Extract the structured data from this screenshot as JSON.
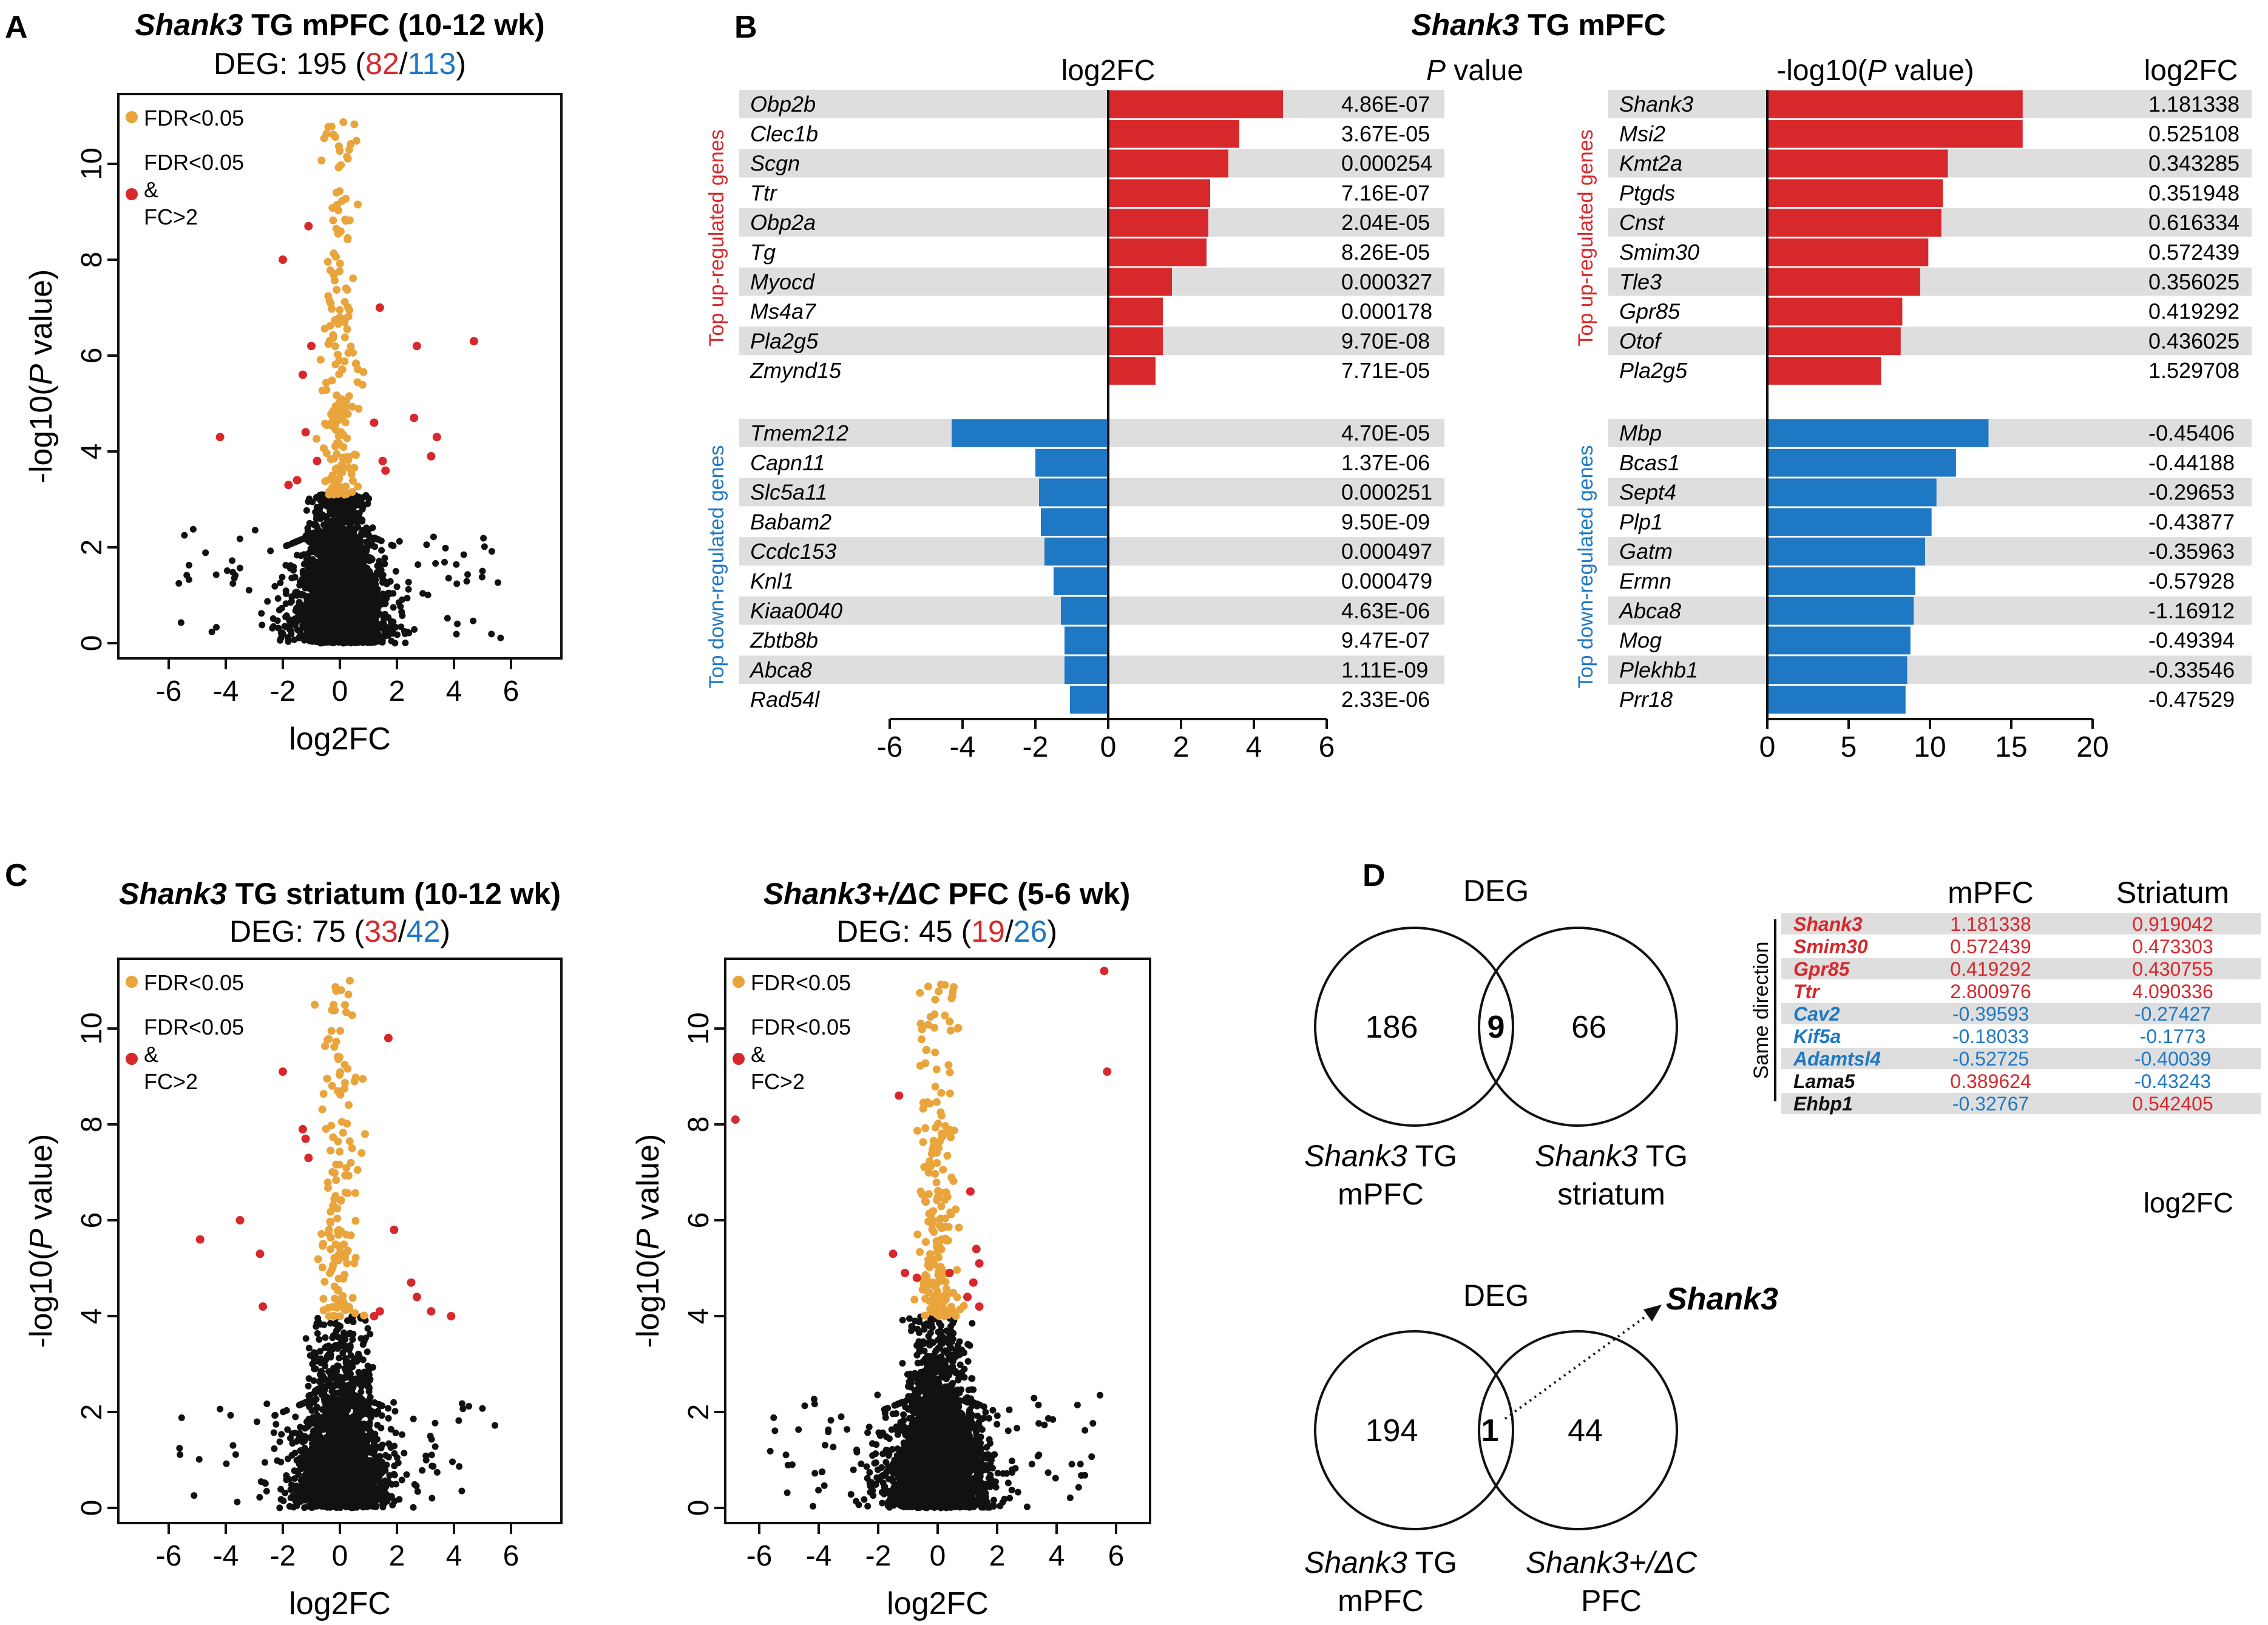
{
  "colors": {
    "red": "#d7282c",
    "blue": "#1f78c4",
    "orange": "#e9a43c",
    "black": "#111111",
    "band": "#dedede"
  },
  "panels": {
    "A": {
      "letter": "A",
      "title_gene": "Shank3",
      "title_rest": " TG mPFC (10-12 wk)",
      "deg_prefix": "DEG: 195 (",
      "up": "82",
      "slash": "/",
      "down": "113",
      "deg_suffix": ")"
    },
    "B": {
      "letter": "B",
      "title_gene": "Shank3",
      "title_rest": " TG mPFC"
    },
    "C": {
      "letter": "C",
      "left": {
        "title_gene": "Shank3",
        "title_rest": " TG striatum (10-12 wk)",
        "deg_prefix": "DEG: 75 (",
        "up": "33",
        "slash": "/",
        "down": "42",
        "deg_suffix": ")"
      },
      "right": {
        "title_gene": "Shank3+/ΔC",
        "title_rest": " PFC (5-6 wk)",
        "deg_prefix": "DEG: 45 (",
        "up": "19",
        "slash": "/",
        "down": "26",
        "deg_suffix": ")"
      }
    },
    "D": {
      "letter": "D"
    }
  },
  "volcano": {
    "xlabel": "log2FC",
    "ylabel_pre": "-log10(",
    "ylabel_p": "P",
    "ylabel_post": " value)",
    "xticks": [
      "-6",
      "-4",
      "-2",
      "0",
      "2",
      "4",
      "6"
    ],
    "yticks": [
      "0",
      "2",
      "4",
      "6",
      "8",
      "10"
    ],
    "legend": {
      "fdr": "FDR<0.05",
      "fdr_fc_1": "FDR<0.05",
      "fdr_fc_2": "&",
      "fdr_fc_3": "FC>2"
    }
  },
  "chart_data": [
    {
      "type": "scatter",
      "panel": "A",
      "title": "Shank3 TG mPFC (10-12 wk)",
      "xlabel": "log2FC",
      "ylabel": "-log10(P value)",
      "xlim": [
        -8,
        8
      ],
      "ylim": [
        -0.3,
        11.5
      ],
      "red_points": [
        [
          -4.2,
          4.3
        ],
        [
          -2.0,
          8.0
        ],
        [
          -1.3,
          5.6
        ],
        [
          -1.2,
          4.4
        ],
        [
          -1.0,
          6.2
        ],
        [
          -0.8,
          3.8
        ],
        [
          -1.5,
          3.4
        ],
        [
          -1.8,
          3.3
        ],
        [
          -1.1,
          8.7
        ],
        [
          1.4,
          7.0
        ],
        [
          1.2,
          4.6
        ],
        [
          1.5,
          3.8
        ],
        [
          2.7,
          6.2
        ],
        [
          2.6,
          4.7
        ],
        [
          3.4,
          4.3
        ],
        [
          3.2,
          3.9
        ],
        [
          4.7,
          6.3
        ],
        [
          1.6,
          3.6
        ]
      ]
    },
    {
      "type": "scatter",
      "panel": "C-left",
      "title": "Shank3 TG striatum (10-12 wk)",
      "xlabel": "log2FC",
      "ylabel": "-log10(P value)",
      "xlim": [
        -8,
        8
      ],
      "ylim": [
        -0.3,
        11.5
      ],
      "red_points": [
        [
          -4.9,
          5.6
        ],
        [
          -3.5,
          6.0
        ],
        [
          -2.8,
          5.3
        ],
        [
          -2.7,
          4.2
        ],
        [
          -2.0,
          9.1
        ],
        [
          -1.3,
          7.9
        ],
        [
          -1.2,
          7.7
        ],
        [
          -1.1,
          7.3
        ],
        [
          1.7,
          9.8
        ],
        [
          1.9,
          5.8
        ],
        [
          2.5,
          4.7
        ],
        [
          2.7,
          4.4
        ],
        [
          3.2,
          4.1
        ],
        [
          1.4,
          4.1
        ],
        [
          1.2,
          4.0
        ],
        [
          3.9,
          4.0
        ]
      ]
    },
    {
      "type": "scatter",
      "panel": "C-right",
      "title": "Shank3+/ΔC PFC (5-6 wk)",
      "xlabel": "log2FC",
      "ylabel": "-log10(P value)",
      "xlim": [
        -8,
        8
      ],
      "ylim": [
        -0.3,
        11.5
      ],
      "red_points": [
        [
          -6.8,
          8.1
        ],
        [
          -1.3,
          8.6
        ],
        [
          -1.5,
          5.3
        ],
        [
          -1.1,
          4.9
        ],
        [
          -0.7,
          4.8
        ],
        [
          1.1,
          6.6
        ],
        [
          1.3,
          5.4
        ],
        [
          1.4,
          5.1
        ],
        [
          1.2,
          4.7
        ],
        [
          1.0,
          4.4
        ],
        [
          5.6,
          11.2
        ],
        [
          5.7,
          9.1
        ],
        [
          0.4,
          4.9
        ],
        [
          1.4,
          4.2
        ]
      ]
    },
    {
      "type": "bar",
      "panel": "B-left",
      "orientation": "horizontal",
      "xlabel": "log2FC",
      "value_header": "P value",
      "xlim": [
        -6,
        6
      ],
      "xticks": [
        -6,
        -4,
        -2,
        0,
        2,
        4,
        6
      ],
      "up_label": "Top up-regulated genes",
      "down_label": "Top down-regulated genes",
      "up": [
        {
          "gene": "Obp2b",
          "value": 4.8,
          "p": "4.86E-07"
        },
        {
          "gene": "Clec1b",
          "value": 3.6,
          "p": "3.67E-05"
        },
        {
          "gene": "Scgn",
          "value": 3.3,
          "p": "0.000254"
        },
        {
          "gene": "Ttr",
          "value": 2.8,
          "p": "7.16E-07"
        },
        {
          "gene": "Obp2a",
          "value": 2.75,
          "p": "2.04E-05"
        },
        {
          "gene": "Tg",
          "value": 2.7,
          "p": "8.26E-05"
        },
        {
          "gene": "Myocd",
          "value": 1.75,
          "p": "0.000327"
        },
        {
          "gene": "Ms4a7",
          "value": 1.5,
          "p": "0.000178"
        },
        {
          "gene": "Pla2g5",
          "value": 1.5,
          "p": "9.70E-08"
        },
        {
          "gene": "Zmynd15",
          "value": 1.3,
          "p": "7.71E-05"
        }
      ],
      "down": [
        {
          "gene": "Tmem212",
          "value": -4.3,
          "p": "4.70E-05"
        },
        {
          "gene": "Capn11",
          "value": -2.0,
          "p": "1.37E-06"
        },
        {
          "gene": "Slc5a11",
          "value": -1.9,
          "p": "0.000251"
        },
        {
          "gene": "Babam2",
          "value": -1.85,
          "p": "9.50E-09"
        },
        {
          "gene": "Ccdc153",
          "value": -1.75,
          "p": "0.000497"
        },
        {
          "gene": "Knl1",
          "value": -1.5,
          "p": "0.000479"
        },
        {
          "gene": "Kiaa0040",
          "value": -1.3,
          "p": "4.63E-06"
        },
        {
          "gene": "Zbtb8b",
          "value": -1.2,
          "p": "9.47E-07"
        },
        {
          "gene": "Abca8",
          "value": -1.2,
          "p": "1.11E-09"
        },
        {
          "gene": "Rad54l",
          "value": -1.05,
          "p": "2.33E-06"
        }
      ]
    },
    {
      "type": "bar",
      "panel": "B-right",
      "orientation": "horizontal",
      "xlabel": "-log10(P value)",
      "value_header": "log2FC",
      "xlim": [
        0,
        20
      ],
      "xticks": [
        0,
        5,
        10,
        15,
        20
      ],
      "up_label": "Top up-regulated genes",
      "down_label": "Top down-regulated genes",
      "up": [
        {
          "gene": "Shank3",
          "value": 15.7,
          "fc": "1.181338"
        },
        {
          "gene": "Msi2",
          "value": 15.7,
          "fc": "0.525108"
        },
        {
          "gene": "Kmt2a",
          "value": 11.1,
          "fc": "0.343285"
        },
        {
          "gene": "Ptgds",
          "value": 10.8,
          "fc": "0.351948"
        },
        {
          "gene": "Cnst",
          "value": 10.7,
          "fc": "0.616334"
        },
        {
          "gene": "Smim30",
          "value": 9.9,
          "fc": "0.572439"
        },
        {
          "gene": "Tle3",
          "value": 9.4,
          "fc": "0.356025"
        },
        {
          "gene": "Gpr85",
          "value": 8.3,
          "fc": "0.419292"
        },
        {
          "gene": "Otof",
          "value": 8.2,
          "fc": "0.436025"
        },
        {
          "gene": "Pla2g5",
          "value": 7.0,
          "fc": "1.529708"
        }
      ],
      "down": [
        {
          "gene": "Mbp",
          "value": 13.6,
          "fc": "-0.45406"
        },
        {
          "gene": "Bcas1",
          "value": 11.6,
          "fc": "-0.44188"
        },
        {
          "gene": "Sept4",
          "value": 10.4,
          "fc": "-0.29653"
        },
        {
          "gene": "Plp1",
          "value": 10.1,
          "fc": "-0.43877"
        },
        {
          "gene": "Gatm",
          "value": 9.7,
          "fc": "-0.35963"
        },
        {
          "gene": "Ermn",
          "value": 9.1,
          "fc": "-0.57928"
        },
        {
          "gene": "Abca8",
          "value": 9.0,
          "fc": "-1.16912"
        },
        {
          "gene": "Mog",
          "value": 8.8,
          "fc": "-0.49394"
        },
        {
          "gene": "Plekhb1",
          "value": 8.6,
          "fc": "-0.33546"
        },
        {
          "gene": "Prr18",
          "value": 8.5,
          "fc": "-0.47529"
        }
      ]
    }
  ],
  "venn": {
    "top": {
      "title": "DEG",
      "left": "186",
      "center": "9",
      "right": "66",
      "label_left_gene": "Shank3",
      "label_left_rest": " TG",
      "label_left_2": "mPFC",
      "label_right_gene": "Shank3",
      "label_right_rest": " TG",
      "label_right_2": "striatum"
    },
    "bottom": {
      "title": "DEG",
      "left": "194",
      "center": "1",
      "right": "44",
      "arrow_label": "Shank3",
      "label_left_gene": "Shank3",
      "label_left_rest": " TG",
      "label_left_2": "mPFC",
      "label_right_gene": "Shank3+/ΔC",
      "label_right_2": "PFC"
    }
  },
  "overlap_table": {
    "col1": "mPFC",
    "col2": "Striatum",
    "side_label": "Same direction",
    "footer": "log2FC",
    "rows": [
      {
        "gene": "Shank3",
        "mpfc": "1.181338",
        "striatum": "0.919042",
        "gc": "red",
        "mc": "red",
        "sc": "red"
      },
      {
        "gene": "Smim30",
        "mpfc": "0.572439",
        "striatum": "0.473303",
        "gc": "red",
        "mc": "red",
        "sc": "red"
      },
      {
        "gene": "Gpr85",
        "mpfc": "0.419292",
        "striatum": "0.430755",
        "gc": "red",
        "mc": "red",
        "sc": "red"
      },
      {
        "gene": "Ttr",
        "mpfc": "2.800976",
        "striatum": "4.090336",
        "gc": "red",
        "mc": "red",
        "sc": "red"
      },
      {
        "gene": "Cav2",
        "mpfc": "-0.39593",
        "striatum": "-0.27427",
        "gc": "blue",
        "mc": "blue",
        "sc": "blue"
      },
      {
        "gene": "Kif5a",
        "mpfc": "-0.18033",
        "striatum": "-0.1773",
        "gc": "blue",
        "mc": "blue",
        "sc": "blue"
      },
      {
        "gene": "Adamtsl4",
        "mpfc": "-0.52725",
        "striatum": "-0.40039",
        "gc": "blue",
        "mc": "blue",
        "sc": "blue"
      },
      {
        "gene": "Lama5",
        "mpfc": "0.389624",
        "striatum": "-0.43243",
        "gc": "black",
        "mc": "red",
        "sc": "blue"
      },
      {
        "gene": "Ehbp1",
        "mpfc": "-0.32767",
        "striatum": "0.542405",
        "gc": "black",
        "mc": "blue",
        "sc": "red"
      }
    ]
  }
}
